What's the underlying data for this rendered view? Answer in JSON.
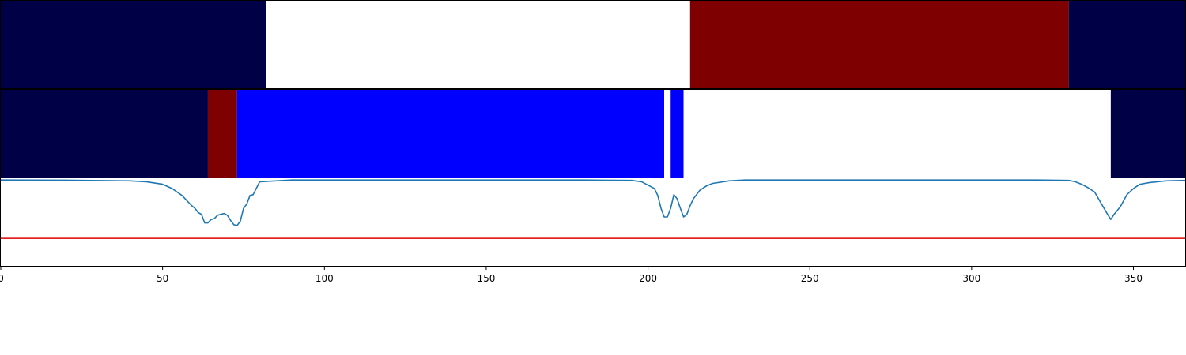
{
  "chart_data": {
    "type": "heatmap",
    "title": "",
    "xlabel": "",
    "ylabel": "",
    "xlim": [
      0,
      366
    ],
    "x_ticks": [
      0,
      50,
      100,
      150,
      200,
      250,
      300,
      350
    ],
    "colors": {
      "navy": "#000046",
      "white": "#ffffff",
      "maroon": "#7f0000",
      "blue": "#0000ff",
      "line": "#1f77b4",
      "threshold": "#e00000"
    },
    "strip_1": {
      "segments": [
        {
          "start": 0,
          "end": 82,
          "color": "navy"
        },
        {
          "start": 82,
          "end": 213,
          "color": "white"
        },
        {
          "start": 213,
          "end": 330,
          "color": "maroon"
        },
        {
          "start": 330,
          "end": 366,
          "color": "navy"
        }
      ]
    },
    "strip_2": {
      "segments": [
        {
          "start": 0,
          "end": 64,
          "color": "navy"
        },
        {
          "start": 64,
          "end": 73,
          "color": "maroon"
        },
        {
          "start": 73,
          "end": 205,
          "color": "blue"
        },
        {
          "start": 205,
          "end": 207,
          "color": "white"
        },
        {
          "start": 207,
          "end": 211,
          "color": "blue"
        },
        {
          "start": 211,
          "end": 343,
          "color": "white"
        },
        {
          "start": 343,
          "end": 366,
          "color": "navy"
        }
      ]
    },
    "line_panel": {
      "ylim": [
        -1.0,
        0.02
      ],
      "threshold": -0.68,
      "series": {
        "x": [
          0,
          20,
          40,
          45,
          50,
          53,
          56,
          58,
          59,
          60,
          61,
          62,
          63,
          64,
          65,
          66,
          67,
          68,
          69,
          70,
          71,
          72,
          73,
          74,
          75,
          76,
          77,
          78,
          80,
          85,
          90,
          180,
          195,
          198,
          200,
          202,
          203,
          204,
          205,
          206,
          207,
          208,
          209,
          210,
          211,
          212,
          213,
          214,
          216,
          218,
          220,
          225,
          230,
          320,
          330,
          332,
          334,
          336,
          338,
          340,
          342,
          343,
          344,
          346,
          348,
          350,
          352,
          355,
          360,
          366
        ],
        "y": [
          0,
          -0.002,
          -0.01,
          -0.02,
          -0.05,
          -0.1,
          -0.18,
          -0.26,
          -0.3,
          -0.33,
          -0.38,
          -0.4,
          -0.5,
          -0.5,
          -0.46,
          -0.45,
          -0.41,
          -0.4,
          -0.39,
          -0.41,
          -0.47,
          -0.52,
          -0.53,
          -0.48,
          -0.33,
          -0.28,
          -0.18,
          -0.17,
          -0.02,
          -0.01,
          0,
          0,
          -0.005,
          -0.02,
          -0.06,
          -0.1,
          -0.18,
          -0.33,
          -0.43,
          -0.43,
          -0.33,
          -0.17,
          -0.22,
          -0.33,
          -0.43,
          -0.4,
          -0.3,
          -0.22,
          -0.12,
          -0.07,
          -0.04,
          -0.01,
          0,
          0,
          -0.005,
          -0.02,
          -0.05,
          -0.09,
          -0.14,
          -0.27,
          -0.4,
          -0.46,
          -0.4,
          -0.31,
          -0.17,
          -0.1,
          -0.05,
          -0.03,
          -0.01,
          -0.005
        ]
      }
    }
  }
}
